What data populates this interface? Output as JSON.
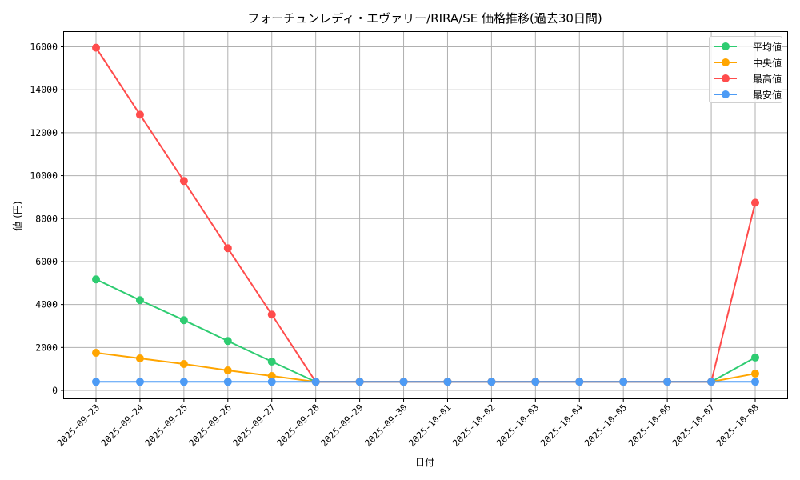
{
  "chart_data": {
    "type": "line",
    "title": "フォーチュンレディ・エヴァリー/RIRA/SE 価格推移(過去30日間)",
    "xlabel": "日付",
    "ylabel": "値 (円)",
    "ylim": [
      -450,
      16700
    ],
    "yticks": [
      0,
      2000,
      4000,
      6000,
      8000,
      10000,
      12000,
      14000,
      16000
    ],
    "grid": true,
    "legend_position": "upper right",
    "categories": [
      "2025-09-23",
      "2025-09-24",
      "2025-09-25",
      "2025-09-26",
      "2025-09-27",
      "2025-09-28",
      "2025-09-29",
      "2025-09-30",
      "2025-10-01",
      "2025-10-02",
      "2025-10-03",
      "2025-10-04",
      "2025-10-05",
      "2025-10-06",
      "2025-10-07",
      "2025-10-08"
    ],
    "series": [
      {
        "name": "平均値",
        "color": "#2ecc71",
        "values": [
          5170,
          4200,
          3270,
          2300,
          1340,
          400,
          400,
          400,
          400,
          400,
          400,
          400,
          400,
          400,
          400,
          1530
        ]
      },
      {
        "name": "中央値",
        "color": "#ffa500",
        "values": [
          1750,
          1490,
          1230,
          930,
          670,
          400,
          400,
          400,
          400,
          400,
          400,
          400,
          400,
          400,
          400,
          780
        ]
      },
      {
        "name": "最高値",
        "color": "#ff4c4c",
        "values": [
          15960,
          12840,
          9750,
          6620,
          3530,
          400,
          400,
          400,
          400,
          400,
          400,
          400,
          400,
          400,
          400,
          8740
        ]
      },
      {
        "name": "最安値",
        "color": "#4d9bf5",
        "values": [
          400,
          400,
          400,
          400,
          400,
          400,
          400,
          400,
          400,
          400,
          400,
          400,
          400,
          400,
          400,
          400
        ]
      }
    ]
  },
  "legend": {
    "items": [
      {
        "label": "平均値",
        "color": "#2ecc71"
      },
      {
        "label": "中央値",
        "color": "#ffa500"
      },
      {
        "label": "最高値",
        "color": "#ff4c4c"
      },
      {
        "label": "最安値",
        "color": "#4d9bf5"
      }
    ]
  }
}
